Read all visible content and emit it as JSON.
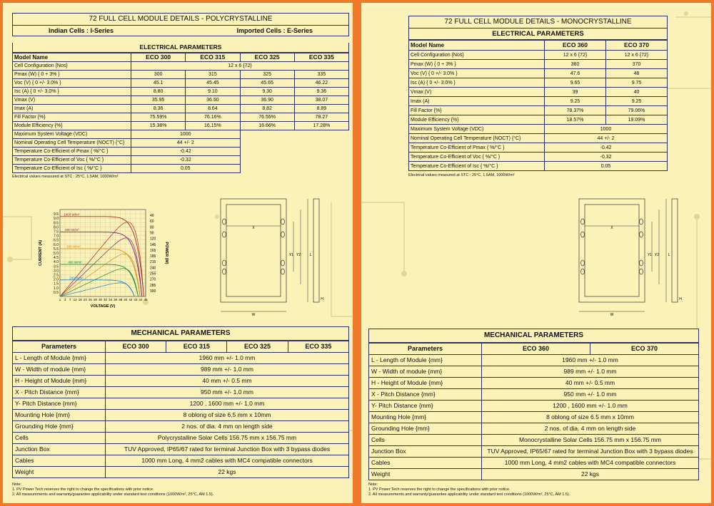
{
  "left": {
    "title": "72 FULL CELL MODULE DETAILS - POLYCRYSTALLINE",
    "sub_left": "Indian Cells : I-Series",
    "sub_right": "Imported Cells : E-Series",
    "elec_title": "ELECTRICAL PARAMETERS",
    "model_label": "Model Name",
    "models": [
      "ECO 300",
      "ECO 315",
      "ECO 325",
      "ECO 335"
    ],
    "cell_config_label": "Cell Configuration {Nos}",
    "cell_config": "12 x 6 {72}",
    "rows": [
      {
        "label": "Pmax (W) { 0 + 3% }",
        "values": [
          "300",
          "315",
          "325",
          "335"
        ]
      },
      {
        "label": "Voc (V) { 0 +/- 3.0% }",
        "values": [
          "45.1",
          "45.45",
          "45.65",
          "46.22"
        ]
      },
      {
        "label": "Isc (A) { 0 +/- 3.0% }",
        "values": [
          "8.80",
          "9.10",
          "9.30",
          "9.36"
        ]
      },
      {
        "label": "Vmax (V)",
        "values": [
          "35.95",
          "36.50",
          "36.90",
          "38.07"
        ]
      },
      {
        "label": "Imax (A)",
        "values": [
          "8.36",
          "8.64",
          "8.82",
          "8.89"
        ]
      },
      {
        "label": "Fill Factor {%}",
        "values": [
          "75.59%",
          "76.16%",
          "76.55%",
          "78.27"
        ]
      },
      {
        "label": "Module Efficiency {%}",
        "values": [
          "15.38%",
          "16.15%",
          "16.66%",
          "17.28%"
        ]
      }
    ],
    "span_rows": [
      {
        "label": "Maximum System Voltage (VDC)",
        "value": "1000"
      },
      {
        "label": "Nominal Operating Cell Temperature (NOCT) {°C}",
        "value": "44 +/- 2"
      },
      {
        "label": "Temperature Co-Efficient of Pmax { %/°C }",
        "value": "-0.42"
      },
      {
        "label": "Temperature Co-Efficient of Voc { %/°C }",
        "value": "-0.32"
      },
      {
        "label": "Temperature Co-Efficient of Isc { %/°C }",
        "value": "0.05"
      }
    ],
    "stc_note": "Electrical values measured at STC : 25°C, 1.5AM, 1000W/m²",
    "mech_title": "MECHANICAL PARAMETERS",
    "mech_param_label": "Parameters",
    "mech_rows": [
      {
        "label": "L - Length of Module {mm}",
        "value": "1960 mm +/- 1.0 mm"
      },
      {
        "label": "W - Width of module {mm}",
        "value": "989 mm +/- 1.0 mm"
      },
      {
        "label": "H - Height of Module {mm}",
        "value": "40 mm +/- 0.5 mm"
      },
      {
        "label": "X - Pitch Distance {mm}",
        "value": "950 mm +/- 1.0 mm"
      },
      {
        "label": "Y- Pitch Distance {mm}",
        "value": "1200 , 1600 mm +/- 1.0 mm"
      },
      {
        "label": "Mounting Hole {mm}",
        "value": "8 oblong of size 6.5 mm x 10mm"
      },
      {
        "label": "Grounding Hole {mm}",
        "value": "2 nos. of dia. 4 mm on length side"
      },
      {
        "label": "Cells",
        "value": "Polycrystalline Solar Cells 156.75 mm x 156.75 mm"
      },
      {
        "label": "Junction Box",
        "value": "TUV Approved, IP65/67 rated for terminal Junction Box with 3 bypass diodes"
      },
      {
        "label": "Cables",
        "value": "1000 mm Long, 4 mm2 cables with MC4 compatible connectors"
      },
      {
        "label": "Weight",
        "value": "22 kgs"
      }
    ],
    "notes": [
      "Note:",
      "1. PV Power Tech reserves the right to change the specifications with prior notice.",
      "2. All measurements and warranty/guarantee applicability under standard test conditions (1000W/m², 25°C, AM 1.5)."
    ]
  },
  "right": {
    "title": "72 FULL CELL MODULE DETAILS - MONOCRYSTALLINE",
    "elec_title": "ELECTRICAL PARAMETERS",
    "model_label": "Model Name",
    "models": [
      "ECO 360",
      "ECO 370"
    ],
    "rows": [
      {
        "label": "Cell Configuration {Nos}",
        "values": [
          "12 x 6 {72}",
          "12 x 6 {72}"
        ]
      },
      {
        "label": "Pmax (W) { 0 + 3% }",
        "values": [
          "360",
          "370"
        ]
      },
      {
        "label": "Voc (V) { 0 +/- 3.0% }",
        "values": [
          "47.6",
          "48"
        ]
      },
      {
        "label": "Isc (A) { 0 +/- 3.0% }",
        "values": [
          "9.65",
          "9.75"
        ]
      },
      {
        "label": "Vmax (V)",
        "values": [
          "39",
          "40"
        ]
      },
      {
        "label": "Imax (A)",
        "values": [
          "9.25",
          "9.25"
        ]
      },
      {
        "label": "Fill Factor {%}",
        "values": [
          "78.37%",
          "79.06%"
        ]
      },
      {
        "label": "Module Efficiency {%}",
        "values": [
          "18.57%",
          "19.09%"
        ]
      }
    ],
    "span_rows": [
      {
        "label": "Maximum System Voltage (VDC)",
        "value": "1000"
      },
      {
        "label": "Nominal Operating Cell Temperature (NOCT) {°C}",
        "value": "44 +/- 2"
      },
      {
        "label": "Temperature Co-Efficient of Pmax { %/°C }",
        "value": "-0.42"
      },
      {
        "label": "Temperature Co-Efficient of Voc { %/°C }",
        "value": "-0.32"
      },
      {
        "label": "Temperature Co-Efficient of Isc { %/°C }",
        "value": "0.05"
      }
    ],
    "stc_note": "Electrical values measured at STC : 25°C, 1.5AM, 1000W/m²",
    "mech_title": "MECHANICAL PARAMETERS",
    "mech_param_label": "Parameters",
    "mech_rows": [
      {
        "label": "L - Length of Module {mm}",
        "value": "1960 mm +/- 1.0 mm"
      },
      {
        "label": "W - Width of module {mm}",
        "value": "989 mm +/- 1.0 mm"
      },
      {
        "label": "H - Height of Module {mm}",
        "value": "40 mm +/- 0.5 mm"
      },
      {
        "label": "X - Pitch Distance {mm}",
        "value": "950 mm +/- 1.0 mm"
      },
      {
        "label": "Y- Pitch Distance {mm}",
        "value": "1200 , 1600 mm +/- 1.0 mm"
      },
      {
        "label": "Mounting Hole {mm}",
        "value": "8 oblong of size 6.5 mm x 10mm"
      },
      {
        "label": "Grounding Hole {mm}",
        "value": "2 nos. of dia. 4 mm on length side"
      },
      {
        "label": "Cells",
        "value": "Monocrystalline Solar Cells 156.75 mm x 156.75 mm"
      },
      {
        "label": "Junction Box",
        "value": "TUV Approved, IP65/67 rated for terminal Junction Box with 3 bypass diodes"
      },
      {
        "label": "Cables",
        "value": "1000 mm Long, 4 mm2 cables with MC4 compatible connectors"
      },
      {
        "label": "Weight",
        "value": "22 kgs"
      }
    ],
    "notes": [
      "Note:",
      "1. PV Power Tech reserves the right to change the specifications with prior notice.",
      "2. All measurements and warranty/guarantee applicability under standard test conditions (1000W/m², 25°C, AM 1.5)."
    ]
  },
  "diagram": {
    "labels": {
      "x": "X",
      "y1": "Y1",
      "y2": "Y2",
      "l": "L",
      "w": "W",
      "h": "H"
    }
  },
  "chart_data": {
    "type": "line",
    "xlabel": "VOLTAGE (V)",
    "ylabel": "CURRENT (A)",
    "y2label": "POWER (W)",
    "xticks": [
      "1",
      "3",
      "7",
      "12",
      "18",
      "23",
      "26",
      "28",
      "30",
      "32",
      "34",
      "36",
      "38",
      "40",
      "42",
      "43",
      "44",
      "45"
    ],
    "yticks": [
      "0.5",
      "1.0",
      "1.5",
      "2.0",
      "2.5",
      "3.0",
      "3.5",
      "4.0",
      "4.5",
      "5.0",
      "5.5",
      "6.0",
      "6.5",
      "7.0",
      "7.5",
      "8.0",
      "8.5",
      "9.0",
      "9.5"
    ],
    "y2ticks": [
      "40",
      "60",
      "80",
      "90",
      "120",
      "145",
      "165",
      "185",
      "215",
      "240",
      "255",
      "270",
      "285",
      "300"
    ],
    "xlim": [
      0,
      46
    ],
    "ylim": [
      0,
      10
    ],
    "series": [
      {
        "name": "1000 W/m²",
        "isc": 9.2,
        "voc": 45,
        "color": "#b3262d"
      },
      {
        "name": "800 W/m²",
        "isc": 7.4,
        "voc": 44,
        "color": "#7a2a6b"
      },
      {
        "name": "600 W/m²",
        "isc": 5.5,
        "voc": 43,
        "color": "#d88a1a"
      },
      {
        "name": "400 W/m²",
        "isc": 3.7,
        "voc": 42,
        "color": "#1f8a3a"
      },
      {
        "name": "200 W/m²",
        "isc": 1.9,
        "voc": 40,
        "color": "#1f88c9"
      }
    ]
  }
}
